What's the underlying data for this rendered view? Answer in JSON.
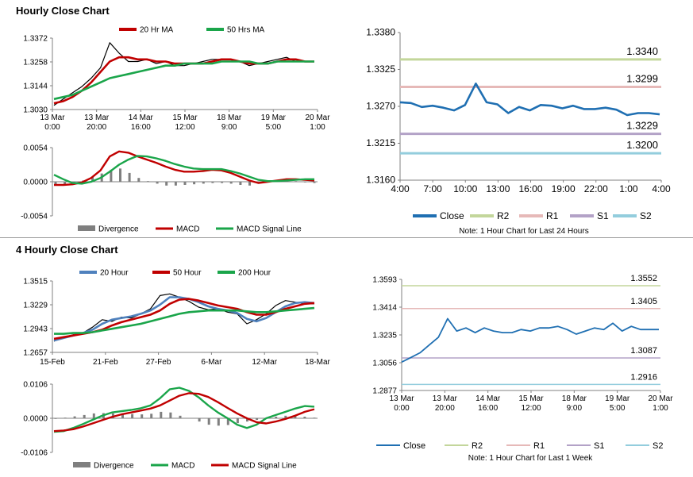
{
  "sections": {
    "hourly_title": "Hourly Close Chart",
    "four_hourly_title": "4 Hourly Close Chart"
  },
  "colors": {
    "price": "#000000",
    "ma_red": "#c00000",
    "ma_green": "#1aa54a",
    "ma_blue": "#4f81bd",
    "divergence": "#7f7f7f",
    "close_line": "#1f6fb2",
    "r2": "#c3d69b",
    "r1": "#e6b9b8",
    "s1": "#b3a2c7",
    "s2": "#93cddd",
    "axis": "#808080"
  },
  "chart_data": [
    {
      "id": "hourly_price",
      "type": "line",
      "legend": [
        "20 Hr MA",
        "50 Hrs MA"
      ],
      "yticks": [
        "1.3372",
        "1.3258",
        "1.3144",
        "1.3030"
      ],
      "ylim": [
        1.303,
        1.3372
      ],
      "xticks": [
        [
          "13 Mar",
          "0:00"
        ],
        [
          "13 Mar",
          "20:00"
        ],
        [
          "14 Mar",
          "16:00"
        ],
        [
          "15 Mar",
          "12:00"
        ],
        [
          "18 Mar",
          "9:00"
        ],
        [
          "19 Mar",
          "5:00"
        ],
        [
          "20 Mar",
          "1:00"
        ]
      ],
      "series": [
        {
          "name": "Close",
          "values": [
            1.305,
            1.308,
            1.311,
            1.314,
            1.318,
            1.323,
            1.335,
            1.33,
            1.326,
            1.326,
            1.327,
            1.325,
            1.326,
            1.324,
            1.324,
            1.325,
            1.326,
            1.327,
            1.327,
            1.327,
            1.326,
            1.324,
            1.325,
            1.326,
            1.327,
            1.328,
            1.326,
            1.326,
            1.326
          ]
        },
        {
          "name": "20 Hr MA",
          "values": [
            1.306,
            1.307,
            1.309,
            1.312,
            1.316,
            1.321,
            1.326,
            1.328,
            1.328,
            1.327,
            1.327,
            1.326,
            1.326,
            1.325,
            1.325,
            1.325,
            1.325,
            1.326,
            1.327,
            1.327,
            1.326,
            1.325,
            1.325,
            1.325,
            1.326,
            1.327,
            1.327,
            1.326,
            1.326
          ]
        },
        {
          "name": "50 Hrs MA",
          "values": [
            1.308,
            1.309,
            1.31,
            1.312,
            1.314,
            1.316,
            1.318,
            1.319,
            1.32,
            1.321,
            1.322,
            1.323,
            1.324,
            1.324,
            1.325,
            1.325,
            1.325,
            1.325,
            1.326,
            1.326,
            1.326,
            1.326,
            1.325,
            1.325,
            1.326,
            1.326,
            1.326,
            1.326,
            1.326
          ]
        }
      ]
    },
    {
      "id": "hourly_macd",
      "type": "line",
      "legend": [
        "Divergence",
        "MACD",
        "MACD Signal Line"
      ],
      "yticks": [
        "0.0054",
        "0.0000",
        "-0.0054"
      ],
      "ylim": [
        -0.0054,
        0.0054
      ],
      "series": [
        {
          "name": "Divergence",
          "values": [
            -0.0006,
            -0.0005,
            -0.0003,
            0.0002,
            0.0007,
            0.0013,
            0.0019,
            0.0021,
            0.0014,
            0.0006,
            0.0001,
            -0.0003,
            -0.0006,
            -0.0006,
            -0.0005,
            -0.0004,
            -0.0003,
            -0.0002,
            -0.0002,
            -0.0003,
            -0.0005,
            -0.0006,
            -0.0003,
            -0.0001,
            0.0001,
            0.0002,
            0.0001,
            -0.0001,
            -0.0002
          ]
        },
        {
          "name": "MACD",
          "values": [
            -0.0005,
            -0.0005,
            -0.0004,
            -0.0001,
            0.0006,
            0.0018,
            0.004,
            0.0048,
            0.0046,
            0.004,
            0.0035,
            0.003,
            0.0024,
            0.0019,
            0.0016,
            0.0016,
            0.0017,
            0.0019,
            0.0018,
            0.0014,
            0.0008,
            0.0002,
            -0.0002,
            0.0,
            0.0002,
            0.0004,
            0.0004,
            0.0003,
            0.0002
          ]
        },
        {
          "name": "MACD Signal Line",
          "values": [
            0.0011,
            0.0004,
            -0.0002,
            -0.0003,
            0.0,
            0.0006,
            0.0016,
            0.0027,
            0.0035,
            0.0041,
            0.004,
            0.0037,
            0.0033,
            0.0028,
            0.0024,
            0.0021,
            0.002,
            0.002,
            0.002,
            0.0017,
            0.0013,
            0.0008,
            0.0003,
            0.0001,
            0.0001,
            0.0002,
            0.0003,
            0.0004,
            0.0004
          ]
        }
      ]
    },
    {
      "id": "hourly_levels",
      "type": "line",
      "note": "Note: 1 Hour Chart for Last 24 Hours",
      "legend": [
        "Close",
        "R2",
        "R1",
        "S1",
        "S2"
      ],
      "yticks": [
        "1.3380",
        "1.3325",
        "1.3270",
        "1.3215",
        "1.3160"
      ],
      "ylim": [
        1.316,
        1.338
      ],
      "xticks": [
        "4:00",
        "7:00",
        "10:00",
        "13:00",
        "16:00",
        "19:00",
        "22:00",
        "1:00",
        "4:00"
      ],
      "levels": [
        {
          "name": "R2",
          "value": 1.334,
          "label": "1.3340"
        },
        {
          "name": "R1",
          "value": 1.3299,
          "label": "1.3299"
        },
        {
          "name": "S1",
          "value": 1.3229,
          "label": "1.3229"
        },
        {
          "name": "S2",
          "value": 1.32,
          "label": "1.3200"
        }
      ],
      "series": [
        {
          "name": "Close",
          "values": [
            1.3276,
            1.3275,
            1.3269,
            1.3271,
            1.3268,
            1.3264,
            1.3272,
            1.3304,
            1.3276,
            1.3273,
            1.326,
            1.3269,
            1.3264,
            1.3272,
            1.3271,
            1.3267,
            1.3271,
            1.3266,
            1.3266,
            1.3268,
            1.3265,
            1.3257,
            1.326,
            1.326,
            1.3258
          ]
        }
      ]
    },
    {
      "id": "four_hourly_price",
      "type": "line",
      "legend": [
        "20 Hour",
        "50 Hour",
        "200 Hour"
      ],
      "yticks": [
        "1.3515",
        "1.3229",
        "1.2943",
        "1.2657"
      ],
      "ylim": [
        1.2657,
        1.3515
      ],
      "xticks": [
        "15-Feb",
        "21-Feb",
        "27-Feb",
        "6-Mar",
        "12-Mar",
        "18-Mar"
      ],
      "series": [
        {
          "name": "Close",
          "values": [
            1.279,
            1.284,
            1.287,
            1.289,
            1.296,
            1.305,
            1.303,
            1.308,
            1.307,
            1.312,
            1.318,
            1.334,
            1.336,
            1.332,
            1.327,
            1.32,
            1.317,
            1.318,
            1.314,
            1.312,
            1.3,
            1.305,
            1.312,
            1.322,
            1.328,
            1.326,
            1.324,
            1.324
          ]
        },
        {
          "name": "20 Hour",
          "values": [
            1.28,
            1.283,
            1.286,
            1.289,
            1.293,
            1.3,
            1.305,
            1.307,
            1.309,
            1.312,
            1.316,
            1.323,
            1.332,
            1.332,
            1.33,
            1.326,
            1.321,
            1.318,
            1.316,
            1.313,
            1.306,
            1.303,
            1.307,
            1.314,
            1.321,
            1.325,
            1.326,
            1.325
          ]
        },
        {
          "name": "50 Hour",
          "values": [
            1.282,
            1.284,
            1.286,
            1.288,
            1.29,
            1.293,
            1.298,
            1.302,
            1.305,
            1.308,
            1.311,
            1.316,
            1.324,
            1.329,
            1.33,
            1.328,
            1.325,
            1.322,
            1.32,
            1.318,
            1.314,
            1.311,
            1.311,
            1.314,
            1.318,
            1.321,
            1.324,
            1.325
          ]
        },
        {
          "name": "200 Hour",
          "values": [
            1.288,
            1.288,
            1.289,
            1.289,
            1.29,
            1.292,
            1.294,
            1.296,
            1.298,
            1.3,
            1.303,
            1.306,
            1.309,
            1.312,
            1.314,
            1.315,
            1.316,
            1.316,
            1.316,
            1.316,
            1.315,
            1.314,
            1.314,
            1.315,
            1.316,
            1.317,
            1.318,
            1.319
          ]
        }
      ]
    },
    {
      "id": "four_hourly_macd",
      "type": "line",
      "legend": [
        "Divergence",
        "MACD",
        "MACD Signal Line"
      ],
      "yticks": [
        "0.0106",
        "0.0000",
        "-0.0106"
      ],
      "ylim": [
        -0.0106,
        0.0106
      ],
      "series": [
        {
          "name": "Divergence",
          "values": [
            -0.0002,
            0.0002,
            0.0006,
            0.001,
            0.0015,
            0.0016,
            0.0015,
            0.0014,
            0.0013,
            0.0012,
            0.0014,
            0.002,
            0.0018,
            0.0008,
            0.0,
            -0.001,
            -0.002,
            -0.0023,
            -0.0021,
            -0.0015,
            -0.001,
            -0.0005,
            0.0,
            0.0005,
            0.0008,
            0.0008,
            0.0005,
            0.0002
          ]
        },
        {
          "name": "MACD",
          "values": [
            -0.0042,
            -0.004,
            -0.003,
            -0.0018,
            -0.0005,
            0.0008,
            0.0018,
            0.0022,
            0.0026,
            0.0031,
            0.004,
            0.0062,
            0.009,
            0.0095,
            0.0085,
            0.0065,
            0.004,
            0.0018,
            0.0,
            -0.002,
            -0.003,
            -0.002,
            0.0,
            0.001,
            0.002,
            0.003,
            0.0038,
            0.0036
          ]
        },
        {
          "name": "MACD Signal Line",
          "values": [
            -0.004,
            -0.0038,
            -0.0034,
            -0.0026,
            -0.0016,
            -0.0006,
            0.0004,
            0.0012,
            0.0018,
            0.0024,
            0.003,
            0.004,
            0.0055,
            0.007,
            0.0078,
            0.0076,
            0.0066,
            0.005,
            0.0032,
            0.0015,
            0.0,
            -0.0012,
            -0.0016,
            -0.001,
            -0.0002,
            0.0008,
            0.002,
            0.0028
          ]
        }
      ]
    },
    {
      "id": "four_hourly_levels",
      "type": "line",
      "note": "Note: 1 Hour Chart for Last 1 Week",
      "legend": [
        "Close",
        "R2",
        "R1",
        "S1",
        "S2"
      ],
      "yticks": [
        "1.3593",
        "1.3414",
        "1.3235",
        "1.3056",
        "1.2877"
      ],
      "ylim": [
        1.2877,
        1.3593
      ],
      "xticks": [
        [
          "13 Mar",
          "0:00"
        ],
        [
          "13 Mar",
          "20:00"
        ],
        [
          "14 Mar",
          "16:00"
        ],
        [
          "15 Mar",
          "12:00"
        ],
        [
          "18 Mar",
          "9:00"
        ],
        [
          "19 Mar",
          "5:00"
        ],
        [
          "20 Mar",
          "1:00"
        ]
      ],
      "levels": [
        {
          "name": "R2",
          "value": 1.3552,
          "label": "1.3552"
        },
        {
          "name": "R1",
          "value": 1.3405,
          "label": "1.3405"
        },
        {
          "name": "S1",
          "value": 1.3087,
          "label": "1.3087"
        },
        {
          "name": "S2",
          "value": 1.2916,
          "label": "1.2916"
        }
      ],
      "series": [
        {
          "name": "Close",
          "values": [
            1.306,
            1.309,
            1.312,
            1.317,
            1.322,
            1.334,
            1.326,
            1.328,
            1.325,
            1.328,
            1.326,
            1.325,
            1.325,
            1.327,
            1.326,
            1.328,
            1.328,
            1.329,
            1.327,
            1.324,
            1.326,
            1.328,
            1.327,
            1.331,
            1.326,
            1.329,
            1.327,
            1.327,
            1.327
          ]
        }
      ]
    }
  ]
}
